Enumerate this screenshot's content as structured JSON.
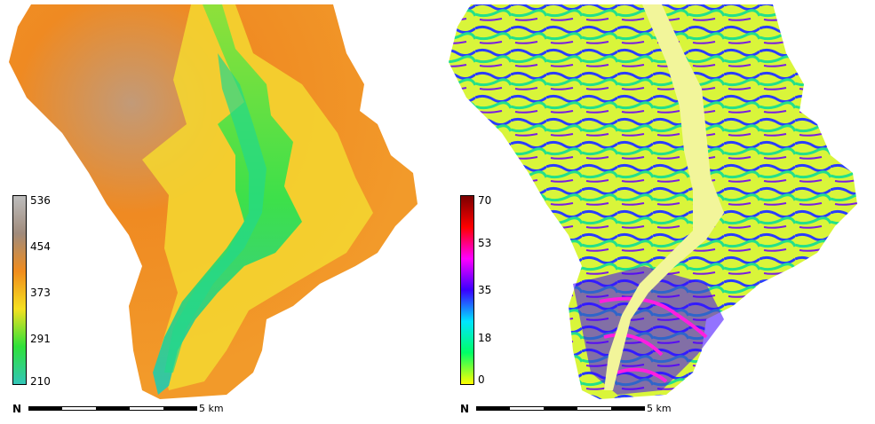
{
  "elevation_map": {
    "legend": {
      "ticks": [
        "536",
        "454",
        "373",
        "291",
        "210"
      ],
      "colors": [
        "#bdbdbd",
        "#a08b7c",
        "#f08c1e",
        "#f5e020",
        "#2fe13a",
        "#33c6b8"
      ]
    },
    "scalebar": {
      "north": "N",
      "label": "5 km"
    }
  },
  "slope_map": {
    "legend": {
      "ticks": [
        "70",
        "53",
        "35",
        "18",
        "0"
      ],
      "colors": [
        "#7a0000",
        "#ff0000",
        "#ff00ff",
        "#3a00ff",
        "#00e5ff",
        "#00ff66",
        "#ffff00"
      ]
    },
    "scalebar": {
      "north": "N",
      "label": "5 km"
    }
  }
}
